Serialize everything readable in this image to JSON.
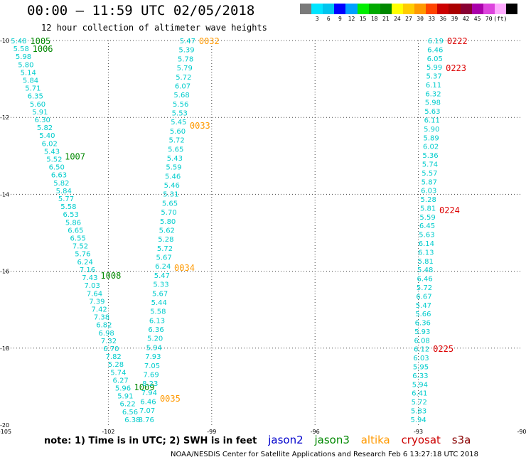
{
  "header": {
    "title": "00:00 – 11:59 UTC 02/05/2018",
    "subtitle": "12 hour collection of altimeter wave heights"
  },
  "legend": {
    "colors": [
      "#7a7a7a",
      "#00e5ff",
      "#00c4ee",
      "#0000ff",
      "#00a0ff",
      "#00ee00",
      "#00aa00",
      "#008800",
      "#ffff00",
      "#ffcc00",
      "#ff9900",
      "#ff4400",
      "#cc0000",
      "#aa0000",
      "#880033",
      "#aa00aa",
      "#dd44dd",
      "#ffaaff",
      "#000000"
    ],
    "labels": [
      "3",
      "6",
      "9",
      "12",
      "15",
      "18",
      "21",
      "24",
      "27",
      "30",
      "33",
      "36",
      "39",
      "42",
      "45",
      "70",
      "(ft)"
    ]
  },
  "note": {
    "text": "note: 1) Time is in UTC; 2) SWH is in feet",
    "satellites": [
      {
        "name": "jason2",
        "color": "#0000cc"
      },
      {
        "name": "jason3",
        "color": "#008800"
      },
      {
        "name": "altika",
        "color": "#ff9900"
      },
      {
        "name": "cryosat",
        "color": "#cc0000"
      },
      {
        "name": "s3a",
        "color": "#880000"
      }
    ]
  },
  "credit": "NOAA/NESDIS Center for Satellite Applications and Research    Feb  6 13:27:18 UTC 2018",
  "chart_data": {
    "type": "scatter",
    "xlim": [
      -105,
      -90
    ],
    "ylim": [
      -20,
      -10
    ],
    "xticks": [
      -105,
      -102,
      -99,
      -96,
      -93,
      -90
    ],
    "yticks": [
      -10,
      -12,
      -14,
      -16,
      -18,
      -20
    ],
    "grid": true,
    "swh_color": "#00cccc",
    "series": [
      {
        "name": "jason3",
        "color": "#008800",
        "start": [
          -104.6,
          -10.0
        ],
        "end": [
          -101.3,
          -19.85
        ],
        "values": [
          5.48,
          5.58,
          5.98,
          5.8,
          5.14,
          5.84,
          5.71,
          6.35,
          5.6,
          5.91,
          6.3,
          5.82,
          5.4,
          6.02,
          5.43,
          5.52,
          6.5,
          6.63,
          5.82,
          5.84,
          5.77,
          5.58,
          6.53,
          5.86,
          6.65,
          6.55,
          7.52,
          5.76,
          6.24,
          7.16,
          7.43,
          7.03,
          7.64,
          7.39,
          7.42,
          7.38,
          6.82,
          6.98,
          7.32,
          6.7,
          7.82,
          5.28,
          5.74,
          6.27,
          5.96,
          5.91,
          6.22,
          6.56,
          6.38
        ],
        "passes": [
          {
            "label": "1005",
            "lat": -10.0
          },
          {
            "label": "1006",
            "lat": -10.2
          },
          {
            "label": "1007",
            "lat": -13.0
          },
          {
            "label": "1008",
            "lat": -16.1
          },
          {
            "label": "1009",
            "lat": -19.0
          }
        ]
      },
      {
        "name": "altika",
        "color": "#ff9900",
        "start": [
          -99.7,
          -10.0
        ],
        "end": [
          -100.9,
          -19.85
        ],
        "values": [
          5.47,
          5.39,
          5.78,
          5.79,
          5.72,
          6.07,
          5.68,
          5.56,
          5.53,
          5.45,
          5.6,
          5.72,
          5.65,
          5.43,
          5.59,
          5.46,
          5.46,
          5.31,
          5.65,
          5.7,
          5.8,
          5.62,
          5.28,
          5.72,
          5.67,
          6.24,
          5.47,
          5.33,
          5.67,
          5.44,
          5.58,
          6.13,
          6.36,
          5.2,
          5.94,
          7.93,
          7.05,
          7.69,
          8.23,
          7.94,
          6.46,
          7.07,
          8.76
        ],
        "passes": [
          {
            "label": "0032",
            "lat": -10.0
          },
          {
            "label": "0033",
            "lat": -12.2
          },
          {
            "label": "0034",
            "lat": -15.9
          },
          {
            "label": "0035",
            "lat": -19.3
          }
        ]
      },
      {
        "name": "cryosat",
        "color": "#dd0000",
        "start": [
          -92.5,
          -10.0
        ],
        "end": [
          -93.0,
          -19.85
        ],
        "values": [
          6.19,
          6.46,
          6.05,
          5.99,
          5.37,
          6.11,
          6.32,
          5.98,
          5.63,
          6.11,
          5.9,
          5.89,
          6.02,
          5.36,
          5.74,
          5.57,
          5.87,
          6.03,
          5.28,
          5.81,
          5.59,
          6.45,
          5.63,
          6.14,
          6.13,
          5.81,
          5.48,
          6.46,
          5.72,
          6.67,
          5.47,
          5.66,
          6.36,
          5.93,
          6.08,
          6.12,
          6.03,
          5.95,
          6.33,
          5.94,
          6.41,
          5.72,
          5.83,
          5.94
        ],
        "passes": [
          {
            "label": "0222",
            "lat": -10.0
          },
          {
            "label": "0223",
            "lat": -10.7
          },
          {
            "label": "0224",
            "lat": -14.4
          },
          {
            "label": "0225",
            "lat": -18.0
          }
        ]
      }
    ]
  }
}
